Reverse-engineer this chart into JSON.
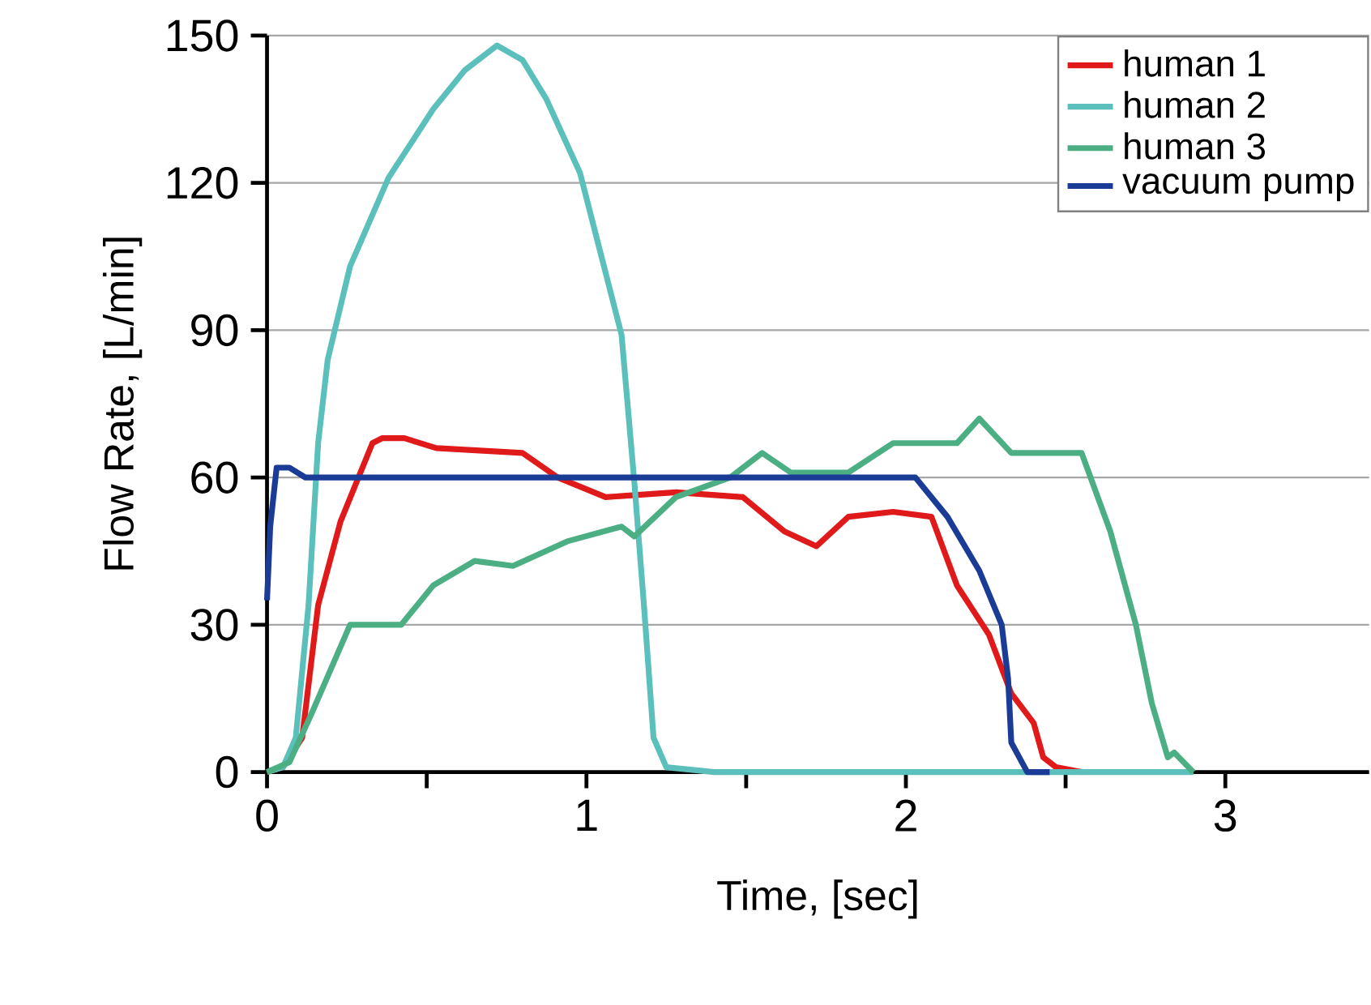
{
  "chart_data": {
    "type": "line",
    "xlabel": "Time, [sec]",
    "ylabel": "Flow Rate, [L/min]",
    "xlim": [
      0,
      3.45
    ],
    "ylim": [
      0,
      150
    ],
    "xticks": [
      0,
      {
        "value": 0.5,
        "label": null
      },
      1,
      {
        "value": 1.5,
        "label": null
      },
      2,
      {
        "value": 2.5,
        "label": null
      },
      3
    ],
    "yticks": [
      0,
      30,
      60,
      90,
      120,
      150
    ],
    "grid": "y",
    "legend": "top right",
    "marker": "none",
    "line_style": "solid",
    "series": [
      {
        "name": "human 1",
        "color": "#e01a1a",
        "x": [
          0,
          0.05,
          0.11,
          0.16,
          0.23,
          0.28,
          0.33,
          0.36,
          0.43,
          0.53,
          0.8,
          0.91,
          1.06,
          1.28,
          1.49,
          1.62,
          1.72,
          1.82,
          1.96,
          2.08,
          2.16,
          2.26,
          2.33,
          2.4,
          2.43,
          2.47,
          2.55
        ],
        "values": [
          0,
          1,
          7,
          34,
          51,
          59,
          67,
          68,
          68,
          66,
          65,
          60,
          56,
          57,
          56,
          49,
          46,
          52,
          53,
          52,
          38,
          28,
          16,
          10,
          3,
          1,
          0
        ]
      },
      {
        "name": "human 2",
        "color": "#5bbfbc",
        "x": [
          0,
          0.05,
          0.09,
          0.13,
          0.16,
          0.19,
          0.26,
          0.38,
          0.52,
          0.62,
          0.72,
          0.8,
          0.875,
          0.98,
          1.11,
          1.15,
          1.18,
          1.21,
          1.25,
          1.4,
          2.0,
          2.6,
          2.9
        ],
        "values": [
          0,
          1,
          7,
          34,
          67,
          84,
          103,
          121,
          135,
          143,
          148,
          145,
          137,
          122,
          89,
          59,
          34,
          7,
          1,
          0,
          0,
          0,
          0
        ]
      },
      {
        "name": "human 3",
        "color": "#4caf84",
        "x": [
          0,
          0.07,
          0.14,
          0.26,
          0.32,
          0.42,
          0.52,
          0.65,
          0.77,
          0.94,
          1.11,
          1.15,
          1.28,
          1.45,
          1.55,
          1.64,
          1.82,
          1.96,
          2.16,
          2.23,
          2.33,
          2.55,
          2.64,
          2.72,
          2.77,
          2.82,
          2.84,
          2.9
        ],
        "values": [
          0,
          2,
          12,
          30,
          30,
          30,
          38,
          43,
          42,
          47,
          50,
          48,
          56,
          60,
          65,
          61,
          61,
          67,
          67,
          72,
          65,
          65,
          49,
          30,
          14,
          3,
          4,
          0
        ]
      },
      {
        "name": "vacuum pump",
        "color": "#1a3c96",
        "x": [
          0,
          0.01,
          0.03,
          0.07,
          0.12,
          0.5,
          1.0,
          1.5,
          2.03,
          2.13,
          2.23,
          2.3,
          2.32,
          2.33,
          2.38,
          2.45
        ],
        "values": [
          35,
          50,
          62,
          62,
          60,
          60,
          60,
          60,
          60,
          52,
          41,
          30,
          19,
          6,
          0,
          0
        ]
      }
    ]
  }
}
